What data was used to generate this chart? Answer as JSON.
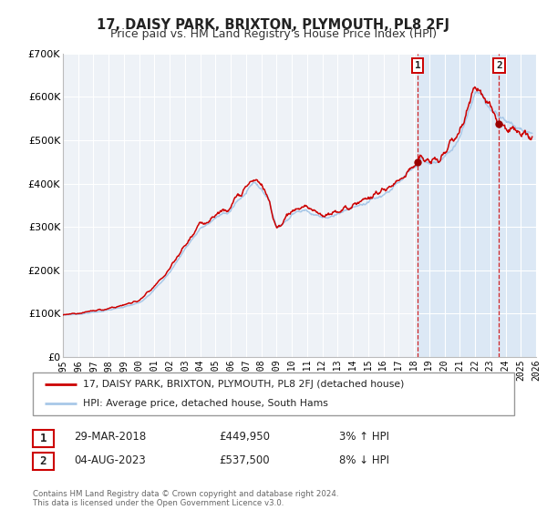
{
  "title": "17, DAISY PARK, BRIXTON, PLYMOUTH, PL8 2FJ",
  "subtitle": "Price paid vs. HM Land Registry's House Price Index (HPI)",
  "legend_line1": "17, DAISY PARK, BRIXTON, PLYMOUTH, PL8 2FJ (detached house)",
  "legend_line2": "HPI: Average price, detached house, South Hams",
  "sale1_date": "29-MAR-2018",
  "sale1_price": "£449,950",
  "sale1_hpi": "3% ↑ HPI",
  "sale1_year": 2018.25,
  "sale1_value": 449950,
  "sale2_date": "04-AUG-2023",
  "sale2_price": "£537,500",
  "sale2_hpi": "8% ↓ HPI",
  "sale2_year": 2023.58,
  "sale2_value": 537500,
  "footer": "Contains HM Land Registry data © Crown copyright and database right 2024.\nThis data is licensed under the Open Government Licence v3.0.",
  "hpi_color": "#a8c8e8",
  "price_color": "#cc0000",
  "marker_color": "#990000",
  "bg_color": "#eef2f7",
  "shade_color": "#dce8f5",
  "ylim": [
    0,
    700000
  ],
  "xlim_start": 1995,
  "xlim_end": 2026,
  "yticks": [
    0,
    100000,
    200000,
    300000,
    400000,
    500000,
    600000,
    700000
  ],
  "ytick_labels": [
    "£0",
    "£100K",
    "£200K",
    "£300K",
    "£400K",
    "£500K",
    "£600K",
    "£700K"
  ]
}
